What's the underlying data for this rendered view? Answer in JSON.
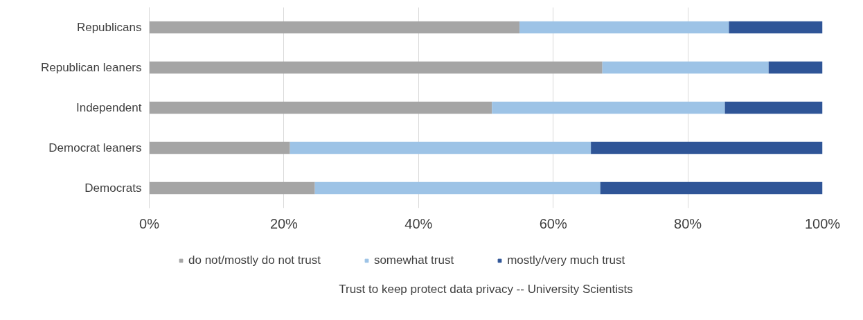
{
  "chart_data": {
    "type": "bar",
    "orientation": "horizontal",
    "stacked": true,
    "title": "Trust to keep protect data privacy -- University Scientists",
    "categories": [
      "Republicans",
      "Republican leaners",
      "Independent",
      "Democrat leaners",
      "Democrats"
    ],
    "series": [
      {
        "name": "do not/mostly do not trust",
        "color": "#a5a5a5",
        "values": [
          55.0,
          67.3,
          50.9,
          20.9,
          24.6
        ]
      },
      {
        "name": "somewhat trust",
        "color": "#9dc3e6",
        "values": [
          31.1,
          24.7,
          34.6,
          44.7,
          42.4
        ]
      },
      {
        "name": "mostly/very much trust",
        "color": "#2f5597",
        "values": [
          13.9,
          8.0,
          14.5,
          34.4,
          33.0
        ]
      }
    ],
    "xlim": [
      0,
      100
    ],
    "xticks": [
      {
        "value": 0,
        "label": "0%"
      },
      {
        "value": 20,
        "label": "20%"
      },
      {
        "value": 40,
        "label": "40%"
      },
      {
        "value": 60,
        "label": "60%"
      },
      {
        "value": 80,
        "label": "80%"
      },
      {
        "value": 100,
        "label": "100%"
      }
    ],
    "grid": "x",
    "legend": "bottom"
  }
}
